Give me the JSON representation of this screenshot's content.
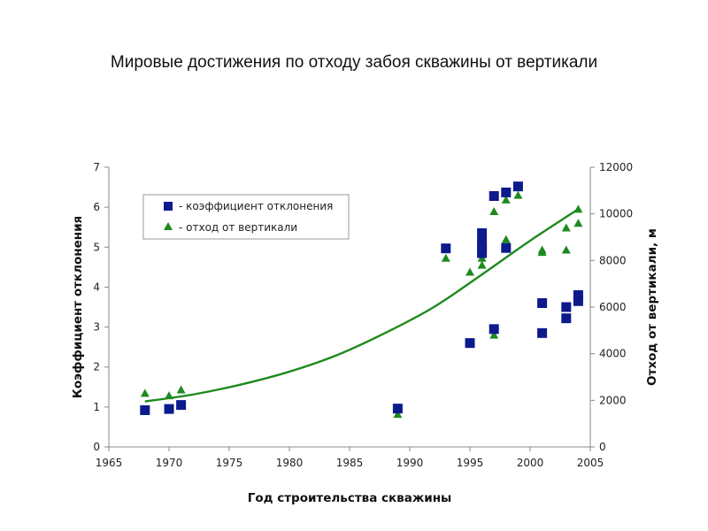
{
  "page": {
    "title": "Мировые достижения по отходу забоя скважины от вертикали"
  },
  "chart_data": {
    "type": "scatter",
    "title": "",
    "xlabel": "Год строительства скважины",
    "ylabel_left": "Коэффициент отклонения",
    "ylabel_right": "Отход от вертикали, м",
    "xlim": [
      1965,
      2005
    ],
    "ylim_left": [
      0,
      7
    ],
    "ylim_right": [
      0,
      12000
    ],
    "grid": false,
    "legend_position": "top-left",
    "x_ticks": [
      "1965",
      "1970",
      "1975",
      "1980",
      "1985",
      "1990",
      "1995",
      "2000",
      "2005"
    ],
    "y_left_ticks": [
      "0",
      "1",
      "2",
      "3",
      "4",
      "5",
      "6",
      "7"
    ],
    "y_right_ticks": [
      "0",
      "2000",
      "4000",
      "6000",
      "8000",
      "10000",
      "12000"
    ],
    "colors": {
      "squares": "#0d1a8c",
      "triangles": "#1e8a1e",
      "trend": "#1e8a1e",
      "axis": "#888888"
    },
    "series": [
      {
        "name": "- коэффициент отклонения",
        "marker": "square",
        "axis": "left",
        "x": [
          1968,
          1970,
          1971,
          1989,
          1993,
          1995,
          1996,
          1996,
          1996,
          1996,
          1997,
          1997,
          1998,
          1998,
          1999,
          2001,
          2001,
          2003,
          2003,
          2004,
          2004
        ],
        "y": [
          0.92,
          0.95,
          1.05,
          0.96,
          4.97,
          2.6,
          4.97,
          5.12,
          5.35,
          4.85,
          6.28,
          2.95,
          6.37,
          4.98,
          6.52,
          3.6,
          2.85,
          3.5,
          3.22,
          3.8,
          3.65
        ]
      },
      {
        "name": "- отход от вертикали",
        "marker": "triangle",
        "axis": "right",
        "x": [
          1968,
          1970,
          1971,
          1989,
          1993,
          1995,
          1996,
          1996,
          1996,
          1997,
          1997,
          1998,
          1998,
          1999,
          2001,
          2001,
          2003,
          2003,
          2004,
          2004
        ],
        "y": [
          2300,
          2200,
          2450,
          1400,
          8100,
          7500,
          8100,
          7800,
          8300,
          10100,
          4800,
          8900,
          10600,
          10800,
          8450,
          8350,
          8450,
          9400,
          9600,
          10200
        ]
      },
      {
        "name": "trend",
        "marker": "line",
        "axis": "right",
        "x": [
          1968,
          1972,
          1976,
          1980,
          1984,
          1988,
          1992,
          1996,
          2000,
          2004
        ],
        "y": [
          1950,
          2250,
          2680,
          3230,
          3950,
          4900,
          6000,
          7400,
          8850,
          10200
        ]
      }
    ]
  }
}
